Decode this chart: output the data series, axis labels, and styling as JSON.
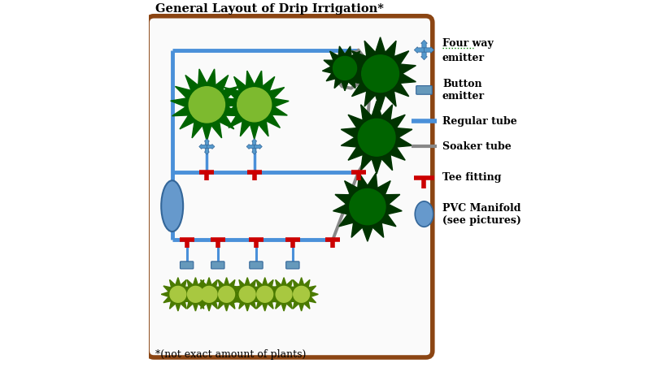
{
  "title": "General Layout of Drip Irrigation*",
  "subtitle": "*(not exact amount of plants)",
  "bg_color": "#ffffff",
  "border_color": "#8B4513",
  "regular_tube_color": "#4a90d9",
  "soaker_tube_color": "#888888",
  "tee_color": "#cc0000",
  "plant_large_outer": "#006400",
  "plant_large_inner": "#7dba2f",
  "plant_small_outer": "#4a7a00",
  "plant_small_inner": "#a8c840",
  "plant_dark_outer": "#003300",
  "plant_dark_inner": "#006400",
  "emitter_four_color": "#5599cc",
  "emitter_button_color": "#6699bb",
  "manifold_color": "#6699cc",
  "legend_items": [
    {
      "label": "Four way\nemitter",
      "type": "four_way",
      "y": 8.8
    },
    {
      "label": "Button\nemitter",
      "type": "button",
      "y": 7.7
    },
    {
      "label": "Regular tube",
      "type": "regular_tube",
      "y": 6.85
    },
    {
      "label": "Soaker tube",
      "type": "soaker_tube",
      "y": 6.15
    },
    {
      "label": "Tee fitting",
      "type": "tee",
      "y": 5.3
    },
    {
      "label": "PVC Manifold\n(see pictures)",
      "type": "manifold",
      "y": 4.3
    }
  ]
}
